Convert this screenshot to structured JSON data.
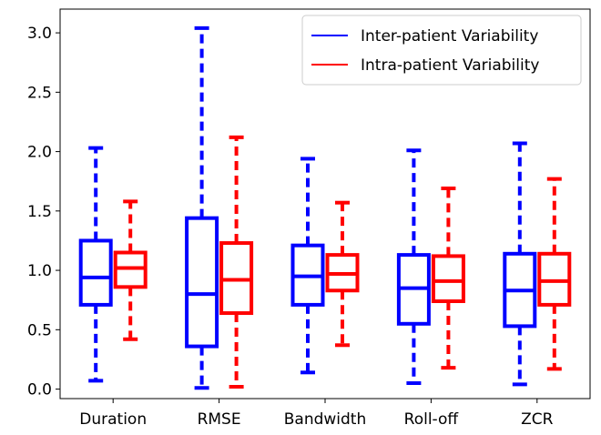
{
  "chart_data": {
    "type": "boxplot",
    "title": "",
    "xlabel": "",
    "ylabel": "",
    "ylim": [
      -0.08,
      3.2
    ],
    "yticks": [
      "0.0",
      "0.5",
      "1.0",
      "1.5",
      "2.0",
      "2.5",
      "3.0"
    ],
    "categories": [
      "Duration",
      "RMSE",
      "Bandwidth",
      "Roll-off",
      "ZCR"
    ],
    "series": [
      {
        "name": "Inter-patient Variability",
        "color": "#0000ff",
        "boxes": [
          {
            "whislo": 0.07,
            "q1": 0.71,
            "med": 0.94,
            "q3": 1.25,
            "whishi": 2.03
          },
          {
            "whislo": 0.01,
            "q1": 0.36,
            "med": 0.8,
            "q3": 1.44,
            "whishi": 3.04
          },
          {
            "whislo": 0.14,
            "q1": 0.71,
            "med": 0.95,
            "q3": 1.21,
            "whishi": 1.94
          },
          {
            "whislo": 0.05,
            "q1": 0.55,
            "med": 0.85,
            "q3": 1.13,
            "whishi": 2.01
          },
          {
            "whislo": 0.04,
            "q1": 0.53,
            "med": 0.83,
            "q3": 1.14,
            "whishi": 2.07
          }
        ]
      },
      {
        "name": "Intra-patient Variability",
        "color": "#ff0000",
        "boxes": [
          {
            "whislo": 0.42,
            "q1": 0.86,
            "med": 1.02,
            "q3": 1.15,
            "whishi": 1.58
          },
          {
            "whislo": 0.02,
            "q1": 0.64,
            "med": 0.92,
            "q3": 1.23,
            "whishi": 2.12
          },
          {
            "whislo": 0.37,
            "q1": 0.83,
            "med": 0.97,
            "q3": 1.13,
            "whishi": 1.57
          },
          {
            "whislo": 0.18,
            "q1": 0.74,
            "med": 0.91,
            "q3": 1.12,
            "whishi": 1.69
          },
          {
            "whislo": 0.17,
            "q1": 0.71,
            "med": 0.91,
            "q3": 1.14,
            "whishi": 1.77
          }
        ]
      }
    ],
    "legend": {
      "position": "top-right"
    }
  }
}
